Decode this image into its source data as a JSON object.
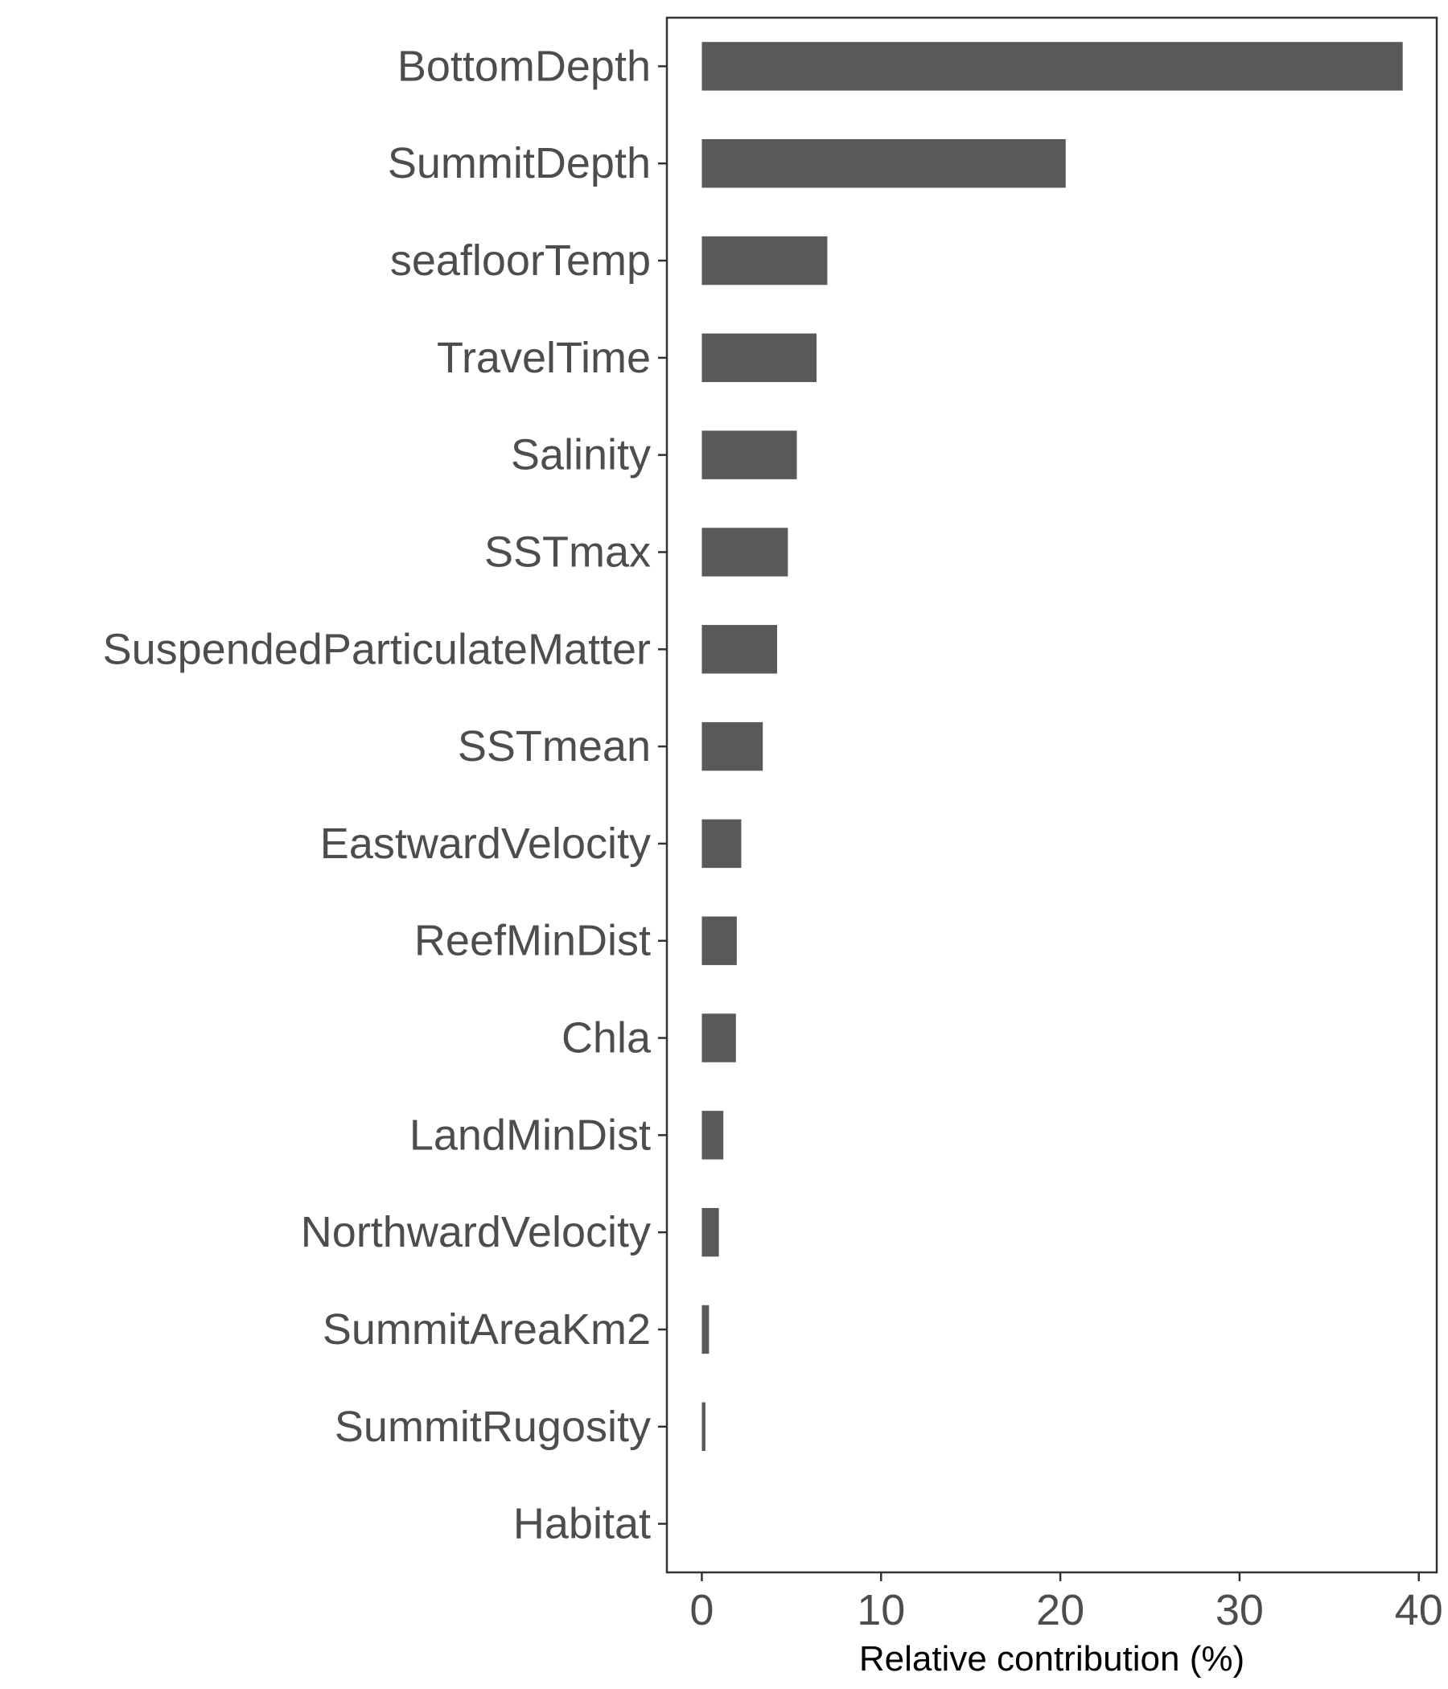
{
  "chart_data": {
    "type": "bar",
    "orientation": "horizontal",
    "categories": [
      "BottomDepth",
      "SummitDepth",
      "seafloorTemp",
      "TravelTime",
      "Salinity",
      "SSTmax",
      "SuspendedParticulateMatter",
      "SSTmean",
      "EastwardVelocity",
      "ReefMinDist",
      "Chla",
      "LandMinDist",
      "NorthwardVelocity",
      "SummitAreaKm2",
      "SummitRugosity",
      "Habitat"
    ],
    "values": [
      39.1,
      20.3,
      7.0,
      6.4,
      5.3,
      4.8,
      4.2,
      3.4,
      2.2,
      1.95,
      1.9,
      1.2,
      0.95,
      0.4,
      0.2,
      0.0
    ],
    "x_ticks": [
      0,
      10,
      20,
      30,
      40
    ],
    "xlim": [
      -1.95,
      41.0
    ],
    "xlabel": "Relative contribution (%)",
    "ylabel": "",
    "title": "",
    "grid": false,
    "bar_color": "#595959"
  }
}
